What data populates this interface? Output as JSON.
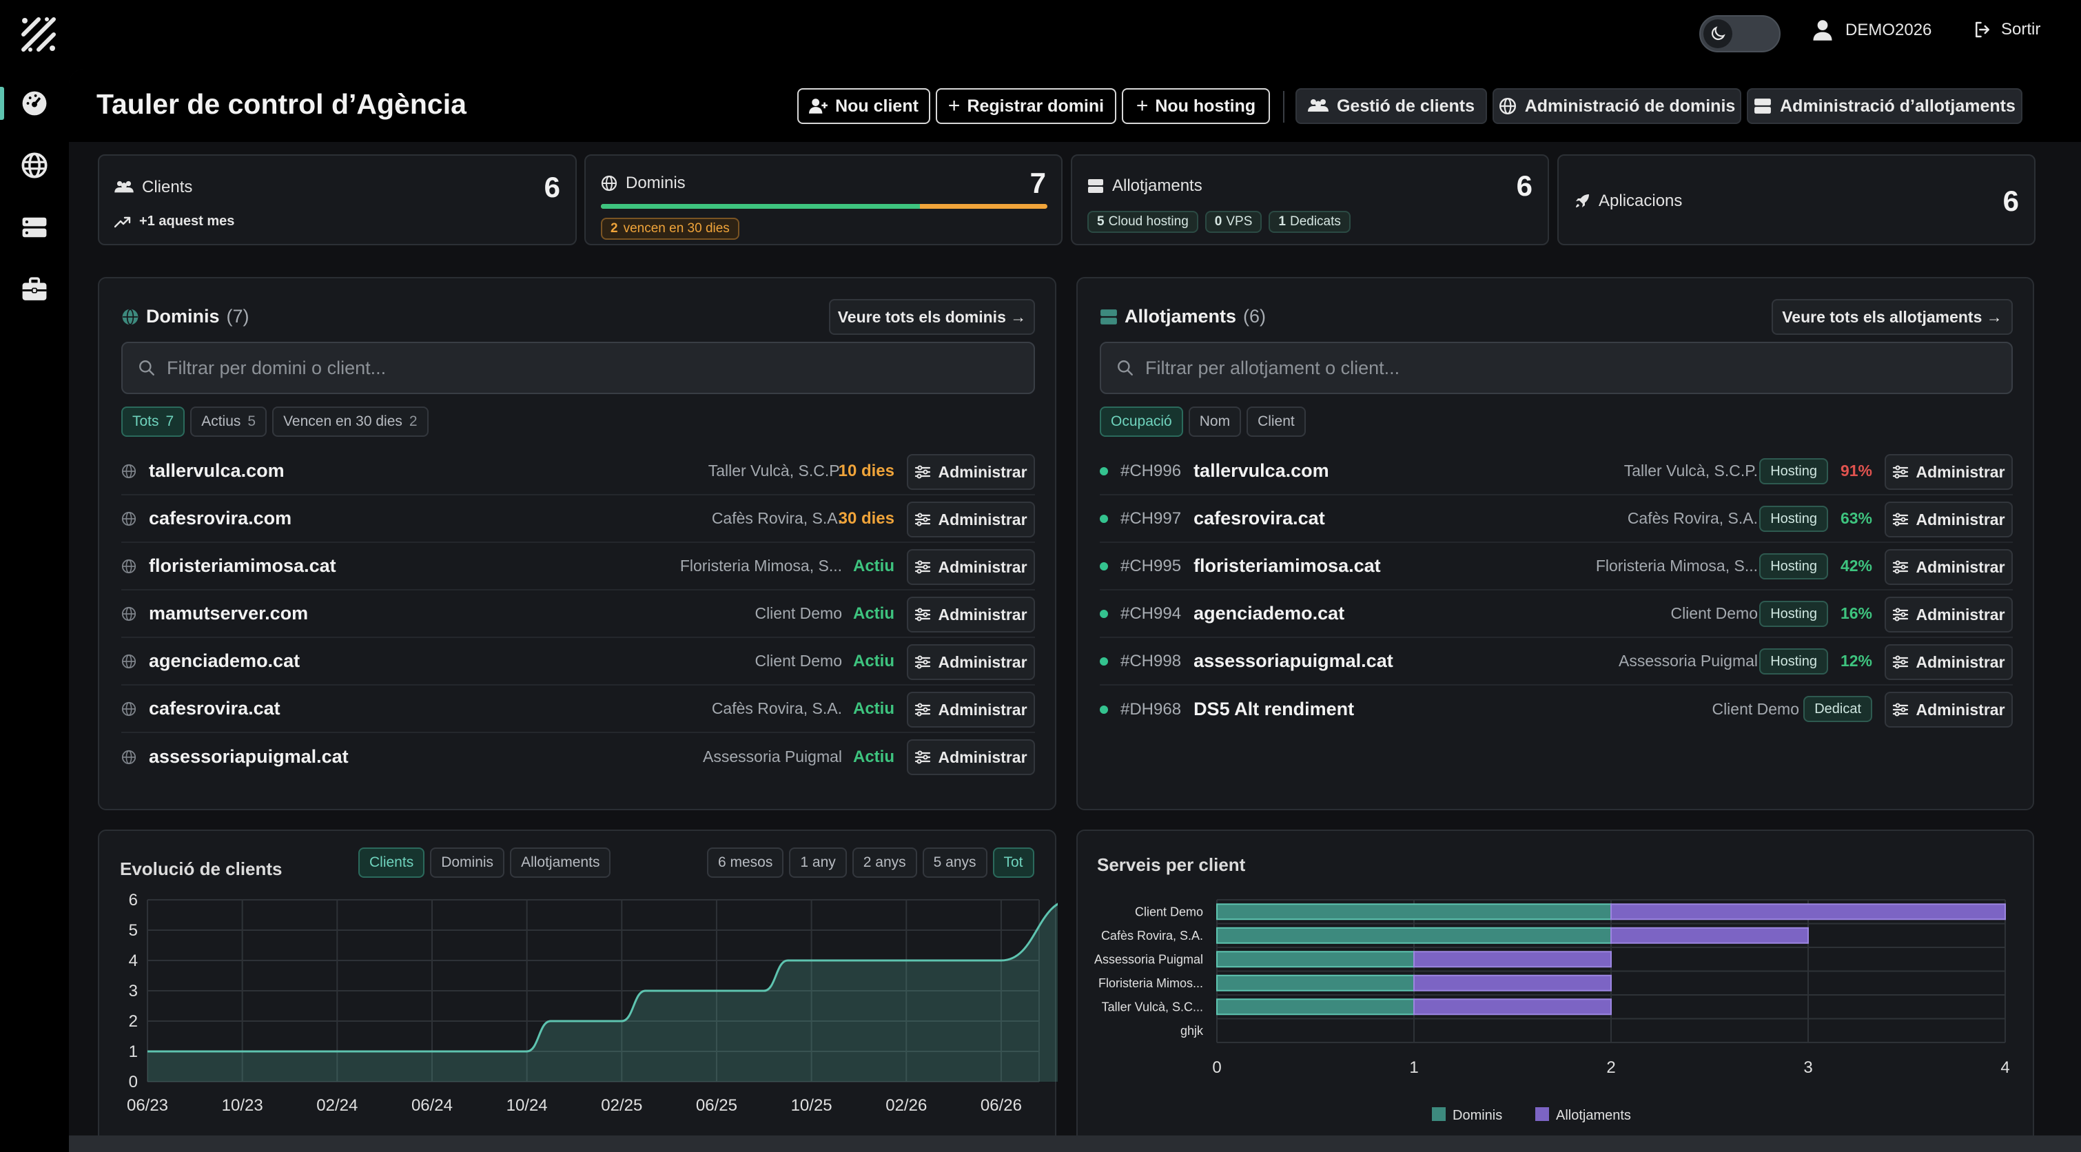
{
  "topbar": {
    "username": "DEMO2026",
    "logout_label": "Sortir"
  },
  "header": {
    "title": "Tauler de control d’Agència",
    "buttons": {
      "new_client": "Nou client",
      "register_domain": "Registrar domini",
      "new_hosting": "Nou hosting",
      "client_mgmt": "Gestió de clients",
      "domain_admin": "Administració de dominis",
      "hosting_admin": "Administració d’allotjaments"
    }
  },
  "stats": {
    "clients": {
      "label": "Clients",
      "value": "6",
      "trend": "+1 aquest mes"
    },
    "domains": {
      "label": "Dominis",
      "value": "7",
      "expiring_count": "2",
      "expiring_text": "vencen en 30 dies",
      "active_fraction": 0.714
    },
    "hosting": {
      "label": "Allotjaments",
      "value": "6",
      "pills": [
        {
          "n": "5",
          "label": "Cloud hosting"
        },
        {
          "n": "0",
          "label": "VPS"
        },
        {
          "n": "1",
          "label": "Dedicats"
        }
      ]
    },
    "apps": {
      "label": "Aplicacions",
      "value": "6"
    }
  },
  "domains_panel": {
    "title": "Dominis",
    "count": "(7)",
    "see_all": "Veure tots els dominis →",
    "search_placeholder": "Filtrar per domini o client...",
    "filters": [
      {
        "label": "Tots",
        "count": "7"
      },
      {
        "label": "Actius",
        "count": "5"
      },
      {
        "label": "Vencen en 30 dies",
        "count": "2"
      }
    ],
    "admin_label": "Administrar",
    "rows": [
      {
        "domain": "tallervulca.com",
        "client": "Taller Vulcà, S.C.P.",
        "status": "10 dies",
        "status_color": "#f0a43a"
      },
      {
        "domain": "cafesrovira.com",
        "client": "Cafès Rovira, S.A.",
        "status": "30 dies",
        "status_color": "#f0a43a"
      },
      {
        "domain": "floristeriamimosa.cat",
        "client": "Floristeria Mimosa, S...",
        "status": "Actiu",
        "status_color": "#3ec47f"
      },
      {
        "domain": "mamutserver.com",
        "client": "Client Demo",
        "status": "Actiu",
        "status_color": "#3ec47f"
      },
      {
        "domain": "agenciademo.cat",
        "client": "Client Demo",
        "status": "Actiu",
        "status_color": "#3ec47f"
      },
      {
        "domain": "cafesrovira.cat",
        "client": "Cafès Rovira, S.A.",
        "status": "Actiu",
        "status_color": "#3ec47f"
      },
      {
        "domain": "assessoriapuigmal.cat",
        "client": "Assessoria Puigmal",
        "status": "Actiu",
        "status_color": "#3ec47f"
      }
    ]
  },
  "hosting_panel": {
    "title": "Allotjaments",
    "count": "(6)",
    "see_all": "Veure tots els allotjaments →",
    "search_placeholder": "Filtrar per allotjament o client...",
    "sorts": [
      "Ocupació",
      "Nom",
      "Client"
    ],
    "admin_label": "Administrar",
    "rows": [
      {
        "id": "#CH996",
        "name": "tallervulca.com",
        "client": "Taller Vulcà, S.C.P.",
        "type": "Hosting",
        "usage": "91%",
        "usage_color": "#e0534f"
      },
      {
        "id": "#CH997",
        "name": "cafesrovira.cat",
        "client": "Cafès Rovira, S.A.",
        "type": "Hosting",
        "usage": "63%",
        "usage_color": "#3ec47f"
      },
      {
        "id": "#CH995",
        "name": "floristeriamimosa.cat",
        "client": "Floristeria Mimosa, S...",
        "type": "Hosting",
        "usage": "42%",
        "usage_color": "#3ec47f"
      },
      {
        "id": "#CH994",
        "name": "agenciademo.cat",
        "client": "Client Demo",
        "type": "Hosting",
        "usage": "16%",
        "usage_color": "#3ec47f"
      },
      {
        "id": "#CH998",
        "name": "assessoriapuigmal.cat",
        "client": "Assessoria Puigmal",
        "type": "Hosting",
        "usage": "12%",
        "usage_color": "#3ec47f"
      },
      {
        "id": "#DH968",
        "name": "DS5 Alt rendiment",
        "client": "Client Demo",
        "type": "Dedicat",
        "usage": "",
        "usage_color": "#3ec47f"
      }
    ]
  },
  "client_chart": {
    "title": "Evolució de clients",
    "metric_tabs": [
      "Clients",
      "Dominis",
      "Allotjaments"
    ],
    "range_tabs": [
      "6 mesos",
      "1 any",
      "2 anys",
      "5 anys",
      "Tot"
    ]
  },
  "services_chart": {
    "title": "Serveis per client"
  },
  "chart_data": [
    {
      "type": "area",
      "title": "Evolució de clients",
      "x_ticks": [
        "06/23",
        "10/23",
        "02/24",
        "06/24",
        "10/24",
        "02/25",
        "06/25",
        "10/25",
        "02/26",
        "06/26"
      ],
      "y_ticks": [
        0,
        1,
        2,
        3,
        4,
        5,
        6
      ],
      "ylim": [
        0,
        6
      ],
      "series": [
        {
          "name": "Clients",
          "points": [
            [
              "06/23",
              1
            ],
            [
              "10/24",
              1
            ],
            [
              "11/24",
              2
            ],
            [
              "02/25",
              2
            ],
            [
              "03/25",
              3
            ],
            [
              "08/25",
              3
            ],
            [
              "09/25",
              4
            ],
            [
              "06/26",
              4
            ],
            [
              "09/26",
              6
            ]
          ]
        }
      ],
      "color": "#5ec4b0",
      "grid": true
    },
    {
      "type": "bar",
      "orientation": "horizontal",
      "stacked": true,
      "title": "Serveis per client",
      "categories": [
        "Client Demo",
        "Cafès Rovira, S.A.",
        "Assessoria Puigmal",
        "Floristeria Mimos...",
        "Taller Vulcà, S.C...",
        "ghjk"
      ],
      "series": [
        {
          "name": "Dominis",
          "values": [
            2,
            2,
            1,
            1,
            1,
            0
          ],
          "color": "#3d8a7e"
        },
        {
          "name": "Allotjaments",
          "values": [
            2,
            1,
            1,
            1,
            1,
            0
          ],
          "color": "#7c64c4"
        }
      ],
      "x_ticks": [
        0,
        1,
        2,
        3,
        4
      ],
      "xlim": [
        0,
        4
      ],
      "legend": "bottom",
      "grid": true
    }
  ]
}
